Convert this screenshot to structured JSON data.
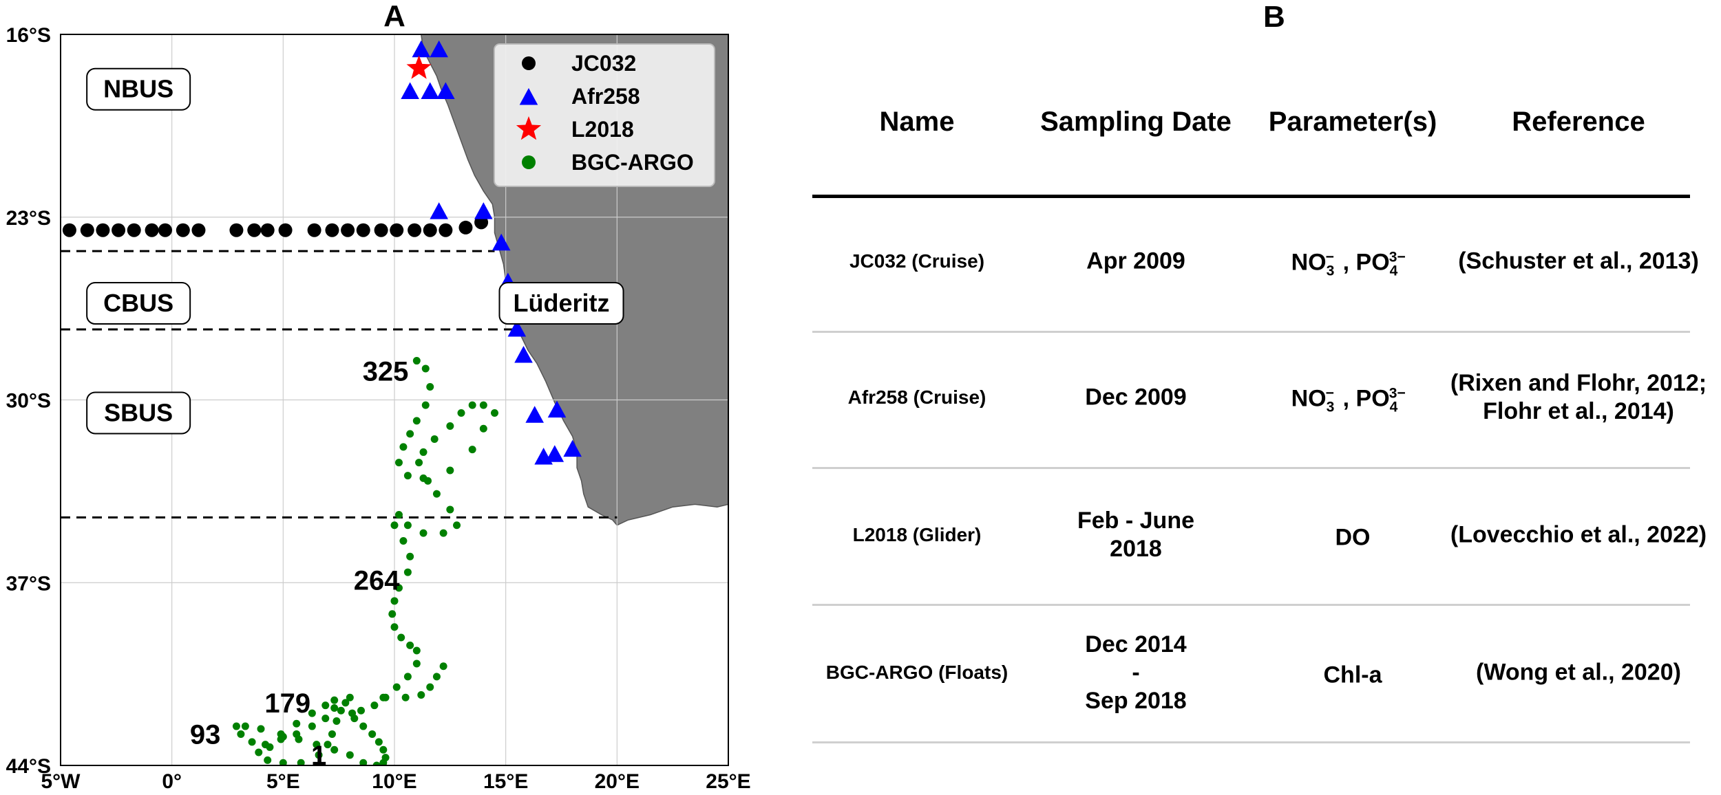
{
  "map": {
    "panel_label": "A",
    "y_ticks": [
      "16°S",
      "23°S",
      "30°S",
      "37°S",
      "44°S"
    ],
    "x_ticks": [
      "5°W",
      "0°",
      "5°E",
      "10°E",
      "15°E",
      "20°E",
      "25°E"
    ],
    "lon_range": [
      -5,
      25
    ],
    "lat_range": [
      -44,
      -16
    ],
    "regions": [
      {
        "label": "NBUS",
        "lon": -1.5,
        "lat": -18.1
      },
      {
        "label": "CBUS",
        "lon": -1.5,
        "lat": -26.3
      },
      {
        "label": "SBUS",
        "lon": -1.5,
        "lat": -30.5
      }
    ],
    "place_label": {
      "label": "Lüderitz",
      "lon": 17.5,
      "lat": -26.3
    },
    "boundary_lats": [
      -24.3,
      -27.3,
      -34.5
    ],
    "legend": [
      {
        "label": "JC032",
        "symbol": "circle",
        "color": "#000000"
      },
      {
        "label": "Afr258",
        "symbol": "triangle",
        "color": "#0000ff"
      },
      {
        "label": "L2018",
        "symbol": "star",
        "color": "#ff0000"
      },
      {
        "label": "BGC-ARGO",
        "symbol": "circle",
        "color": "#008000"
      }
    ],
    "argo_labels": [
      {
        "text": "325",
        "lon": 9.6,
        "lat": -28.9
      },
      {
        "text": "264",
        "lon": 9.2,
        "lat": -36.9
      },
      {
        "text": "179",
        "lon": 5.2,
        "lat": -41.6
      },
      {
        "text": "93",
        "lon": 1.5,
        "lat": -42.8
      },
      {
        "text": "1",
        "lon": 6.6,
        "lat": -43.6
      }
    ],
    "colors": {
      "land": "#808080",
      "jc032": "#000000",
      "afr258": "#0000ff",
      "l2018": "#ff0000",
      "argo": "#008000"
    }
  },
  "table": {
    "panel_label": "B",
    "headers": [
      "Name",
      "Sampling Date",
      "Parameter(s)",
      "Reference"
    ],
    "rows": [
      {
        "name": "JC032 (Cruise)",
        "date": [
          "Apr 2009"
        ],
        "parameter": "NO3_PO4",
        "reference": [
          "(Schuster et al., 2013)"
        ]
      },
      {
        "name": "Afr258 (Cruise)",
        "date": [
          "Dec 2009"
        ],
        "parameter": "NO3_PO4",
        "reference": [
          "(Rixen and Flohr, 2012;",
          "Flohr et al., 2014)"
        ]
      },
      {
        "name": "L2018 (Glider)",
        "date": [
          "Feb - June",
          "2018"
        ],
        "parameter": "DO",
        "reference": [
          "(Lovecchio et al., 2022)"
        ]
      },
      {
        "name": "BGC-ARGO (Floats)",
        "date": [
          "Dec 2014",
          "-",
          "Sep 2018"
        ],
        "parameter": "Chl-a",
        "reference": [
          "(Wong et al., 2020)"
        ]
      }
    ]
  },
  "chart_data": {
    "type": "scatter",
    "title": "A",
    "xlim": [
      -5,
      25
    ],
    "ylim": [
      -44,
      -16
    ],
    "xticks": [
      "5°W",
      "0°",
      "5°E",
      "10°E",
      "15°E",
      "20°E",
      "25°E"
    ],
    "yticks": [
      "16°S",
      "23°S",
      "30°S",
      "37°S",
      "44°S"
    ],
    "grid": true,
    "legend_position": "top-right",
    "series": [
      {
        "name": "JC032",
        "marker": "circle",
        "color": "#000000",
        "lon": [
          -4.6,
          -3.8,
          -3.1,
          -2.4,
          -1.7,
          -0.9,
          -0.3,
          0.5,
          1.2,
          2.9,
          3.7,
          4.3,
          5.1,
          6.4,
          7.2,
          7.9,
          8.6,
          9.4,
          10.1,
          10.9,
          11.6,
          12.3,
          13.2,
          13.9
        ],
        "lat": [
          -23.5,
          -23.5,
          -23.5,
          -23.5,
          -23.5,
          -23.5,
          -23.5,
          -23.5,
          -23.5,
          -23.5,
          -23.5,
          -23.5,
          -23.5,
          -23.5,
          -23.5,
          -23.5,
          -23.5,
          -23.5,
          -23.5,
          -23.5,
          -23.5,
          -23.5,
          -23.4,
          -23.2
        ]
      },
      {
        "name": "Afr258",
        "marker": "triangle",
        "color": "#0000ff",
        "lon": [
          11.2,
          12.0,
          10.7,
          11.6,
          12.3,
          12.0,
          14.0,
          14.8,
          15.1,
          15.5,
          15.8,
          16.3,
          17.3,
          16.7,
          17.2,
          18.0
        ],
        "lat": [
          -16.6,
          -16.6,
          -18.2,
          -18.2,
          -18.2,
          -22.8,
          -22.8,
          -24.0,
          -25.5,
          -27.3,
          -28.3,
          -30.6,
          -30.4,
          -32.2,
          -32.1,
          -31.9
        ]
      },
      {
        "name": "L2018",
        "marker": "star",
        "color": "#ff0000",
        "lon": [
          11.1
        ],
        "lat": [
          -17.3
        ]
      },
      {
        "name": "BGC-ARGO",
        "marker": "circle",
        "color": "#008000",
        "lon": [
          11.0,
          11.4,
          11.6,
          11.4,
          11.0,
          10.7,
          10.4,
          10.2,
          10.6,
          11.5,
          12.5,
          13.5,
          14.0,
          14.5,
          14.0,
          13.5,
          13.0,
          12.5,
          11.8,
          11.3,
          11.1,
          11.3,
          11.9,
          12.5,
          12.8,
          12.2,
          11.3,
          10.6,
          10.2,
          10.0,
          10.4,
          10.7,
          10.6,
          10.2,
          10.0,
          9.9,
          10.0,
          10.3,
          10.7,
          11.0,
          11.0,
          10.6,
          10.1,
          9.6,
          9.1,
          8.5,
          8.1,
          8.2,
          8.6,
          9.0,
          9.3,
          9.5,
          9.6,
          9.5,
          9.2,
          8.6,
          8.0,
          7.3,
          6.5,
          5.7,
          4.9,
          4.0,
          3.3,
          2.9,
          3.1,
          3.6,
          4.2,
          4.9,
          5.6,
          6.3,
          6.9,
          7.3,
          7.3,
          6.9,
          6.3,
          5.6,
          5.0,
          4.4,
          3.9,
          4.3,
          5.0,
          5.8,
          6.6,
          7.0,
          7.2,
          7.4,
          7.6,
          7.8,
          8.0,
          9.5,
          10.5,
          11.2,
          11.6,
          11.9,
          12.2
        ],
        "lat": [
          -28.5,
          -28.8,
          -29.5,
          -30.2,
          -30.8,
          -31.3,
          -31.8,
          -32.4,
          -32.9,
          -33.1,
          -32.7,
          -31.9,
          -31.1,
          -30.5,
          -30.2,
          -30.2,
          -30.5,
          -31.0,
          -31.5,
          -32.0,
          -32.4,
          -33.0,
          -33.6,
          -34.2,
          -34.8,
          -35.1,
          -35.1,
          -34.8,
          -34.4,
          -34.8,
          -35.4,
          -36.0,
          -36.6,
          -37.2,
          -37.7,
          -38.2,
          -38.7,
          -39.1,
          -39.4,
          -39.6,
          -40.1,
          -40.6,
          -41.0,
          -41.4,
          -41.7,
          -41.9,
          -42.0,
          -42.2,
          -42.5,
          -42.8,
          -43.1,
          -43.4,
          -43.7,
          -43.9,
          -44.0,
          -43.9,
          -43.6,
          -43.4,
          -43.2,
          -43.0,
          -42.8,
          -42.6,
          -42.5,
          -42.5,
          -42.8,
          -43.1,
          -43.2,
          -43.0,
          -42.8,
          -42.5,
          -42.2,
          -41.8,
          -41.5,
          -41.7,
          -42.0,
          -42.4,
          -42.9,
          -43.3,
          -43.5,
          -43.8,
          -43.9,
          -43.9,
          -43.6,
          -43.2,
          -42.8,
          -42.3,
          -41.9,
          -41.6,
          -41.4,
          -41.4,
          -41.4,
          -41.3,
          -41.0,
          -40.6,
          -40.2
        ]
      }
    ]
  }
}
